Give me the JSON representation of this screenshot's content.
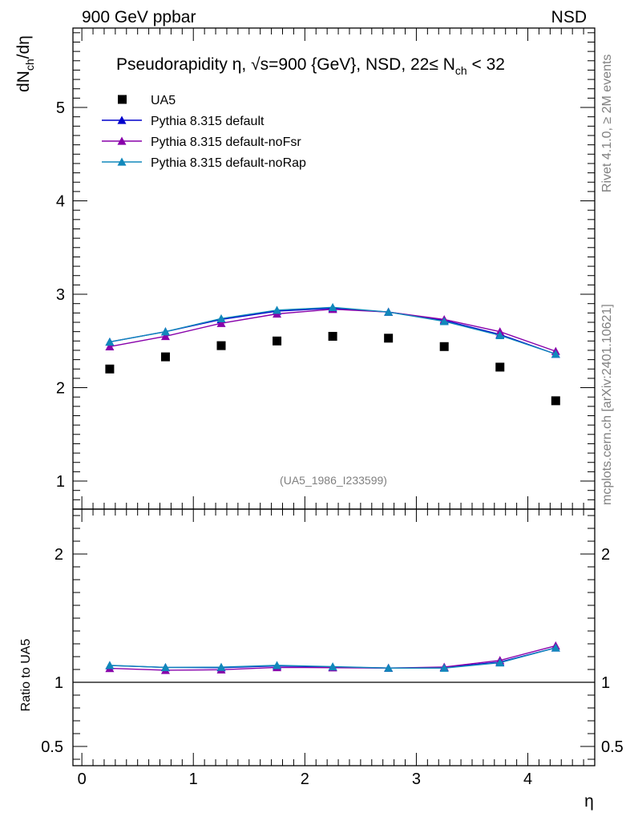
{
  "header": {
    "left": "900 GeV ppbar",
    "right": "NSD"
  },
  "side_labels": {
    "rivet": "Rivet 4.1.0, ≥ 2M events",
    "mcplots": "mcplots.cern.ch [arXiv:2401.10621]"
  },
  "colors": {
    "data": "#000000",
    "default": "#0000cc",
    "noFsr": "#8800aa",
    "noRap": "#1188bb"
  },
  "chart_data": [
    {
      "type": "scatter",
      "panel": "main",
      "title": "Pseudorapidity η, √s=900 {GeV}, NSD, 22≤ N",
      "title_sub": "ch",
      "title_tail": " < 32",
      "ylabel_main": "dN",
      "ylabel_sub": "ch",
      "ylabel_tail": "/dη",
      "watermark": "(UA5_1986_I233599)",
      "xlim": [
        -0.08,
        4.6
      ],
      "ylim": [
        0.7,
        5.85
      ],
      "yticks": [
        1,
        2,
        3,
        4,
        5
      ],
      "x": [
        0.25,
        0.75,
        1.25,
        1.75,
        2.25,
        2.75,
        3.25,
        3.75,
        4.25
      ],
      "series": [
        {
          "name": "UA5",
          "style": "data",
          "color_key": "data",
          "values": [
            2.2,
            2.33,
            2.45,
            2.5,
            2.55,
            2.53,
            2.44,
            2.22,
            1.86
          ]
        },
        {
          "name": "Pythia 8.315 default",
          "style": "mc",
          "color_key": "default",
          "values": [
            2.49,
            2.6,
            2.73,
            2.82,
            2.85,
            2.81,
            2.72,
            2.57,
            2.36
          ]
        },
        {
          "name": "Pythia 8.315 default-noFsr",
          "style": "mc",
          "color_key": "noFsr",
          "values": [
            2.44,
            2.55,
            2.69,
            2.79,
            2.84,
            2.81,
            2.73,
            2.6,
            2.39
          ]
        },
        {
          "name": "Pythia 8.315 default-noRap",
          "style": "mc",
          "color_key": "noRap",
          "values": [
            2.49,
            2.6,
            2.74,
            2.83,
            2.86,
            2.81,
            2.71,
            2.56,
            2.36
          ]
        }
      ]
    },
    {
      "type": "line",
      "panel": "ratio",
      "ylabel": "Ratio to UA5",
      "xlabel": "η",
      "xlim": [
        -0.08,
        4.6
      ],
      "ylim": [
        0.35,
        2.35
      ],
      "yticks": [
        0.5,
        1,
        2
      ],
      "ytick_labels": [
        "0.5",
        "1",
        "2"
      ],
      "xticks": [
        0,
        1,
        2,
        3,
        4
      ],
      "xtick_labels": [
        "0",
        "1",
        "2",
        "3",
        "4"
      ],
      "reference": 1,
      "x": [
        0.25,
        0.75,
        1.25,
        1.75,
        2.25,
        2.75,
        3.25,
        3.75,
        4.25
      ],
      "series": [
        {
          "name": "Pythia 8.315 default",
          "color_key": "default",
          "values": [
            1.131,
            1.116,
            1.114,
            1.128,
            1.118,
            1.111,
            1.115,
            1.158,
            1.269
          ]
        },
        {
          "name": "Pythia 8.315 default-noFsr",
          "color_key": "noFsr",
          "values": [
            1.109,
            1.094,
            1.098,
            1.116,
            1.114,
            1.111,
            1.119,
            1.171,
            1.285
          ]
        },
        {
          "name": "Pythia 8.315 default-noRap",
          "color_key": "noRap",
          "values": [
            1.132,
            1.116,
            1.118,
            1.132,
            1.122,
            1.111,
            1.111,
            1.153,
            1.269
          ]
        }
      ]
    }
  ]
}
